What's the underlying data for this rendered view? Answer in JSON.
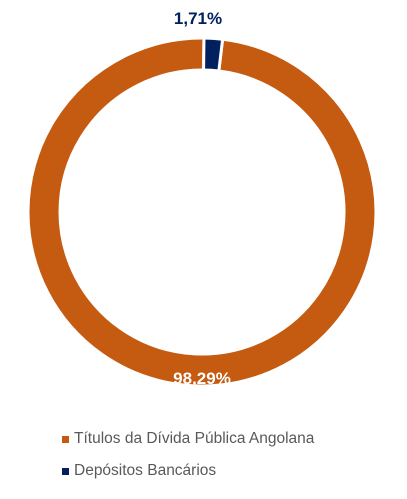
{
  "chart_data": {
    "type": "pie",
    "variant": "donut",
    "title": "",
    "categories": [
      "Títulos da Dívida Pública Angolana",
      "Depósitos Bancários"
    ],
    "values": [
      98.29,
      1.71
    ],
    "data_labels": [
      "98,29%",
      "1,71%"
    ],
    "colors": [
      "#C55A11",
      "#002060"
    ],
    "label_colors": [
      "#FFFFFF",
      "#002060"
    ],
    "legend_position": "bottom"
  }
}
